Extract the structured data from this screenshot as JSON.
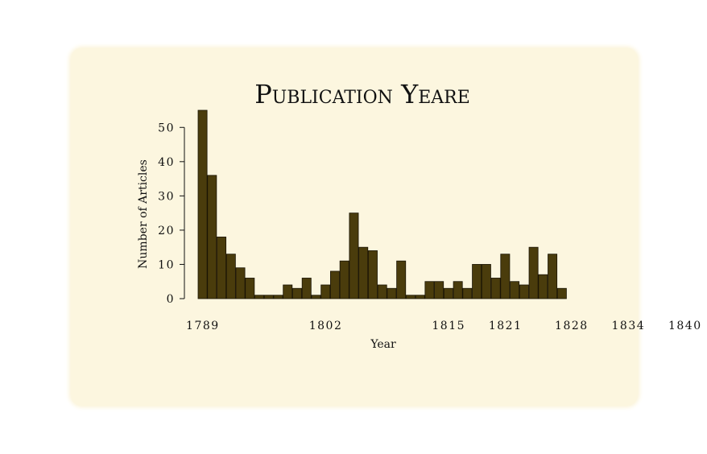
{
  "chart_data": {
    "type": "bar",
    "title": "Publication Yeare",
    "xlabel": "Year",
    "ylabel": "Number of Articles",
    "x_start": 1789,
    "x_end": 1842,
    "xticks": [
      1789,
      1802,
      1815,
      1821,
      1828,
      1834,
      1840
    ],
    "yticks": [
      0,
      10,
      20,
      30,
      40,
      50
    ],
    "ylim": [
      0,
      55
    ],
    "grid": false,
    "bar_color": "#4a3c0c",
    "values": [
      55,
      36,
      18,
      13,
      9,
      6,
      1,
      1,
      1,
      4,
      3,
      6,
      1,
      4,
      8,
      11,
      25,
      15,
      14,
      4,
      3,
      11,
      1,
      1,
      5,
      5,
      3,
      5,
      3,
      10,
      10,
      6,
      13,
      5,
      4,
      15,
      7,
      13,
      3
    ]
  },
  "colors": {
    "panel_background": "#fcf6df",
    "bar_fill": "#4a3c0c",
    "bar_stroke": "#1a1405"
  }
}
